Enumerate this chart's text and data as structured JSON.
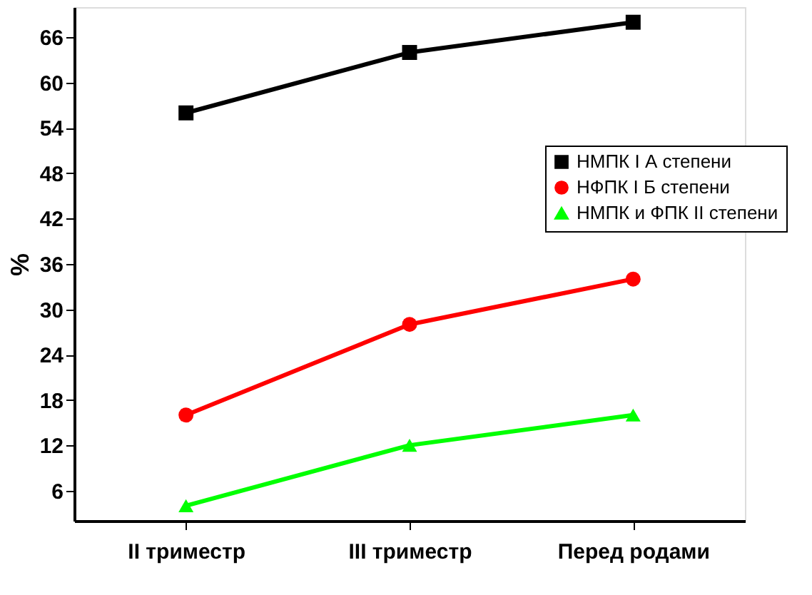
{
  "chart_data": {
    "type": "line",
    "ylabel": "%",
    "categories": [
      "II триместр",
      "III триместр",
      "Перед родами"
    ],
    "series": [
      {
        "name": "НМПК I А степени",
        "color": "#000000",
        "marker": "square",
        "values": [
          56,
          64,
          68
        ]
      },
      {
        "name": "НФПК I Б степени",
        "color": "#ff0000",
        "marker": "circle",
        "values": [
          16,
          28,
          34
        ]
      },
      {
        "name": "НМПК и ФПК II степени",
        "color": "#00ff00",
        "marker": "triangle",
        "values": [
          4,
          12,
          16
        ]
      }
    ],
    "ylim": [
      2,
      70
    ],
    "yticks": [
      6,
      12,
      18,
      24,
      30,
      36,
      42,
      48,
      54,
      60,
      66
    ],
    "grid": false,
    "legend": "right",
    "line_style": "solid"
  }
}
